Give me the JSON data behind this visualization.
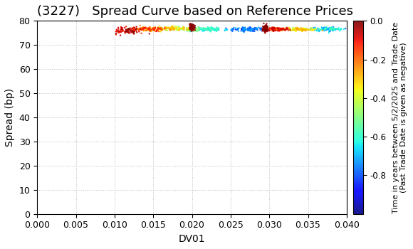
{
  "title": "(3227)   Spread Curve based on Reference Prices",
  "xlabel": "DV01",
  "ylabel": "Spread (bp)",
  "xlim": [
    0.0,
    0.04
  ],
  "ylim": [
    0,
    80
  ],
  "xticks": [
    0.0,
    0.005,
    0.01,
    0.015,
    0.02,
    0.025,
    0.03,
    0.035,
    0.04
  ],
  "yticks": [
    0,
    10,
    20,
    30,
    40,
    50,
    60,
    70,
    80
  ],
  "colorbar_label": "Time in years between 5/2/2025 and Trade Date\n(Past Trade Date is given as negative)",
  "colorbar_vmin": -1.0,
  "colorbar_vmax": 0.0,
  "colorbar_ticks": [
    0.0,
    -0.2,
    -0.4,
    -0.6,
    -0.8
  ],
  "background_color": "#ffffff",
  "grid_color": "#bbbbbb",
  "title_fontsize": 13,
  "axis_fontsize": 10,
  "tick_fontsize": 9,
  "scatter_s": 3,
  "num_points": 1200
}
